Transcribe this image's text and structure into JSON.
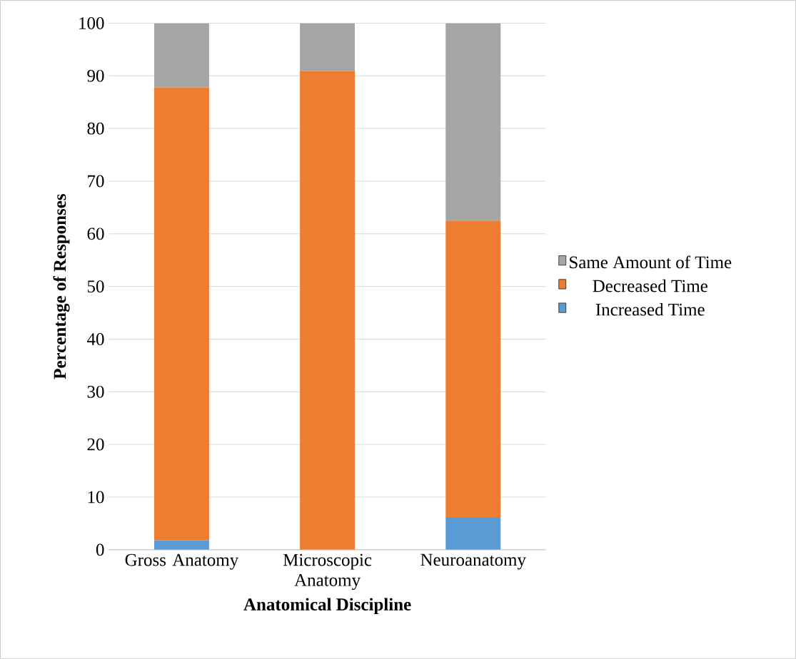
{
  "chart_data": {
    "type": "bar",
    "stacked": true,
    "xlabel": "Anatomical Discipline",
    "ylabel": "Percentage of Responses",
    "categories": [
      "Gross Anatomy",
      "Microscopic Anatomy",
      "Neuroanatomy"
    ],
    "series": [
      {
        "name": "Increased Time",
        "color": "#5b9bd5",
        "values": [
          1.8,
          0,
          6.2
        ]
      },
      {
        "name": "Decreased Time",
        "color": "#ed7d31",
        "values": [
          86.0,
          90.9,
          56.3
        ]
      },
      {
        "name": "Same Amount of Time",
        "color": "#a5a5a5",
        "values": [
          12.2,
          9.1,
          37.5
        ]
      }
    ],
    "ylim": [
      0,
      100
    ],
    "yticks": [
      0,
      10,
      20,
      30,
      40,
      50,
      60,
      70,
      80,
      90,
      100
    ],
    "grid": "y",
    "legend": "right"
  }
}
